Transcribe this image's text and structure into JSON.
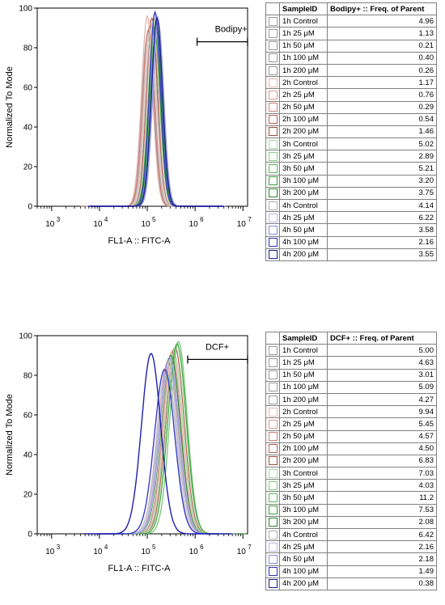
{
  "panels": [
    {
      "id": "top",
      "chart_data": {
        "type": "line",
        "xlabel": "FL1-A :: FITC-A",
        "ylabel": "Normalized To Mode",
        "x_scale": "log",
        "xlim": [
          500,
          12500000
        ],
        "ylim": [
          0,
          100
        ],
        "x_ticks": [
          "10",
          "10",
          "10",
          "10",
          "10"
        ],
        "x_tick_exponents": [
          "3",
          "4",
          "5",
          "6",
          "7"
        ],
        "y_ticks": [
          "0",
          "20",
          "40",
          "60",
          "80",
          "100"
        ],
        "gate": {
          "label": "Bodipy+",
          "from": 1100000,
          "to": 12500000,
          "y": 83
        },
        "series": [
          {
            "color": "#b8b8b8",
            "peak": 140000,
            "height": 95,
            "width": 0.115
          },
          {
            "color": "#c8c8c8",
            "peak": 120000,
            "height": 91,
            "width": 0.12
          },
          {
            "color": "#aaaaaa",
            "peak": 110000,
            "height": 88,
            "width": 0.12
          },
          {
            "color": "#d0d0d0",
            "peak": 150000,
            "height": 93,
            "width": 0.115
          },
          {
            "color": "#bdbdbd",
            "peak": 100000,
            "height": 86,
            "width": 0.12
          },
          {
            "color": "#e9c6c1",
            "peak": 115000,
            "height": 94,
            "width": 0.12
          },
          {
            "color": "#e0aea8",
            "peak": 100000,
            "height": 96,
            "width": 0.12
          },
          {
            "color": "#d8958c",
            "peak": 130000,
            "height": 92,
            "width": 0.115
          },
          {
            "color": "#c97a70",
            "peak": 105000,
            "height": 89,
            "width": 0.12
          },
          {
            "color": "#b56358",
            "peak": 125000,
            "height": 95,
            "width": 0.115
          },
          {
            "color": "#c9e8c9",
            "peak": 135000,
            "height": 93,
            "width": 0.12
          },
          {
            "color": "#9fd89f",
            "peak": 145000,
            "height": 97,
            "width": 0.115
          },
          {
            "color": "#6fc26f",
            "peak": 150000,
            "height": 94,
            "width": 0.115
          },
          {
            "color": "#3ea63e",
            "peak": 140000,
            "height": 90,
            "width": 0.12
          },
          {
            "color": "#2e8b2e",
            "peak": 155000,
            "height": 92,
            "width": 0.115
          },
          {
            "color": "#cccccc",
            "peak": 120000,
            "height": 90,
            "width": 0.12
          },
          {
            "color": "#c8c8f0",
            "peak": 165000,
            "height": 96,
            "width": 0.115
          },
          {
            "color": "#9a9ae6",
            "peak": 170000,
            "height": 93,
            "width": 0.115
          },
          {
            "color": "#3d3dc8",
            "peak": 145000,
            "height": 98,
            "width": 0.115
          },
          {
            "color": "#1f1f9e",
            "peak": 160000,
            "height": 95,
            "width": 0.115
          }
        ]
      },
      "table": {
        "headers": [
          "SampleID",
          "Bodipy+ :: Freq. of Parent"
        ],
        "rows": [
          {
            "sample": "1h Control",
            "value": "4.96",
            "color": "#ffffff",
            "border": "#9a9a9a"
          },
          {
            "sample": "1h 25 μM",
            "value": "1.13",
            "color": "#ffffff",
            "border": "#9a9a9a"
          },
          {
            "sample": "1h 50 μM",
            "value": "0.21",
            "color": "#ffffff",
            "border": "#9a9a9a"
          },
          {
            "sample": "1h 100 μM",
            "value": "0.40",
            "color": "#ffffff",
            "border": "#9a9a9a"
          },
          {
            "sample": "1h 200 μM",
            "value": "0.26",
            "color": "#ffffff",
            "border": "#9a9a9a"
          },
          {
            "sample": "2h Control",
            "value": "1.17",
            "color": "#ffffff",
            "border": "#e6b5ae"
          },
          {
            "sample": "2h 25 μM",
            "value": "0.76",
            "color": "#ffffff",
            "border": "#d89a91"
          },
          {
            "sample": "2h 50 μM",
            "value": "0.29",
            "color": "#ffffff",
            "border": "#cc8075"
          },
          {
            "sample": "2h 100 μM",
            "value": "0.54",
            "color": "#ffffff",
            "border": "#b86558"
          },
          {
            "sample": "2h 200 μM",
            "value": "1.46",
            "color": "#ffffff",
            "border": "#a14d40"
          },
          {
            "sample": "3h Control",
            "value": "5.02",
            "color": "#ffffff",
            "border": "#a8dca8"
          },
          {
            "sample": "3h 25 μM",
            "value": "2.89",
            "color": "#ffffff",
            "border": "#86cc86"
          },
          {
            "sample": "3h 50 μM",
            "value": "5.21",
            "color": "#ffffff",
            "border": "#5cb85c"
          },
          {
            "sample": "3h 100 μM",
            "value": "3.20",
            "color": "#ffffff",
            "border": "#3a9f3a"
          },
          {
            "sample": "3h 200 μM",
            "value": "3.75",
            "color": "#ffffff",
            "border": "#2a842a"
          },
          {
            "sample": "4h Control",
            "value": "4.14",
            "color": "#ffffff",
            "border": "#b0b0b0"
          },
          {
            "sample": "4h 25 μM",
            "value": "6.22",
            "color": "#ffffff",
            "border": "#b8b8ea"
          },
          {
            "sample": "4h 50 μM",
            "value": "3.58",
            "color": "#ffffff",
            "border": "#8a8ade"
          },
          {
            "sample": "4h 100 μM",
            "value": "2.16",
            "color": "#ffffff",
            "border": "#3030c0"
          },
          {
            "sample": "4h 200 μM",
            "value": "3.55",
            "color": "#ffffff",
            "border": "#1a1a96"
          }
        ]
      }
    },
    {
      "id": "bottom",
      "chart_data": {
        "type": "line",
        "xlabel": "FL1-A :: FITC-A",
        "ylabel": "Normalized To Mode",
        "x_scale": "log",
        "xlim": [
          500,
          12500000
        ],
        "ylim": [
          0,
          100
        ],
        "x_ticks": [
          "10",
          "10",
          "10",
          "10",
          "10"
        ],
        "x_tick_exponents": [
          "3",
          "4",
          "5",
          "6",
          "7"
        ],
        "y_ticks": [
          "0",
          "20",
          "40",
          "60",
          "80",
          "100"
        ],
        "gate": {
          "label": "DCF+",
          "from": 700000,
          "to": 12500000,
          "y": 88
        },
        "series": [
          {
            "color": "#b8b8b8",
            "peak": 280000,
            "height": 88,
            "width": 0.2
          },
          {
            "color": "#c8c8c8",
            "peak": 250000,
            "height": 84,
            "width": 0.2
          },
          {
            "color": "#aaaaaa",
            "peak": 320000,
            "height": 90,
            "width": 0.19
          },
          {
            "color": "#d0d0d0",
            "peak": 300000,
            "height": 86,
            "width": 0.2
          },
          {
            "color": "#bdbdbd",
            "peak": 260000,
            "height": 80,
            "width": 0.21
          },
          {
            "color": "#e9c6c1",
            "peak": 350000,
            "height": 93,
            "width": 0.19
          },
          {
            "color": "#e0aea8",
            "peak": 290000,
            "height": 89,
            "width": 0.2
          },
          {
            "color": "#d8958c",
            "peak": 330000,
            "height": 92,
            "width": 0.19
          },
          {
            "color": "#c97a70",
            "peak": 270000,
            "height": 87,
            "width": 0.2
          },
          {
            "color": "#b56358",
            "peak": 380000,
            "height": 94,
            "width": 0.19
          },
          {
            "color": "#c9e8c9",
            "peak": 400000,
            "height": 95,
            "width": 0.19
          },
          {
            "color": "#9fd89f",
            "peak": 360000,
            "height": 91,
            "width": 0.19
          },
          {
            "color": "#6fc26f",
            "peak": 450000,
            "height": 97,
            "width": 0.18
          },
          {
            "color": "#3ea63e",
            "peak": 420000,
            "height": 96,
            "width": 0.19
          },
          {
            "color": "#2e8b2e",
            "peak": 310000,
            "height": 90,
            "width": 0.2
          },
          {
            "color": "#cccccc",
            "peak": 300000,
            "height": 88,
            "width": 0.2
          },
          {
            "color": "#c8c8f0",
            "peak": 270000,
            "height": 85,
            "width": 0.2
          },
          {
            "color": "#9a9ae6",
            "peak": 290000,
            "height": 89,
            "width": 0.2
          },
          {
            "color": "#3d3dc8",
            "peak": 230000,
            "height": 83,
            "width": 0.21
          },
          {
            "color": "#1f1fb0",
            "peak": 120000,
            "height": 91,
            "width": 0.2
          }
        ]
      },
      "table": {
        "headers": [
          "SampleID",
          "DCF+ :: Freq. of Parent"
        ],
        "rows": [
          {
            "sample": "1h Control",
            "value": "5.00",
            "color": "#ffffff",
            "border": "#9a9a9a"
          },
          {
            "sample": "1h 25 μM",
            "value": "4.63",
            "color": "#ffffff",
            "border": "#9a9a9a"
          },
          {
            "sample": "1h 50 μM",
            "value": "3.01",
            "color": "#ffffff",
            "border": "#9a9a9a"
          },
          {
            "sample": "1h 100 μM",
            "value": "5.09",
            "color": "#ffffff",
            "border": "#9a9a9a"
          },
          {
            "sample": "1h 200 μM",
            "value": "4.27",
            "color": "#ffffff",
            "border": "#9a9a9a"
          },
          {
            "sample": "2h Control",
            "value": "9.94",
            "color": "#ffffff",
            "border": "#e6b5ae"
          },
          {
            "sample": "2h 25 μM",
            "value": "5.45",
            "color": "#ffffff",
            "border": "#d89a91"
          },
          {
            "sample": "2h 50 μM",
            "value": "4.57",
            "color": "#ffffff",
            "border": "#cc8075"
          },
          {
            "sample": "2h 100 μM",
            "value": "4.50",
            "color": "#ffffff",
            "border": "#b86558"
          },
          {
            "sample": "2h 200 μM",
            "value": "6.83",
            "color": "#ffffff",
            "border": "#a14d40"
          },
          {
            "sample": "3h Control",
            "value": "7.03",
            "color": "#ffffff",
            "border": "#a8dca8"
          },
          {
            "sample": "3h 25 μM",
            "value": "4.03",
            "color": "#ffffff",
            "border": "#86cc86"
          },
          {
            "sample": "3h 50 μM",
            "value": "11.2",
            "color": "#ffffff",
            "border": "#5cb85c"
          },
          {
            "sample": "3h 100 μM",
            "value": "7.53",
            "color": "#ffffff",
            "border": "#3a9f3a"
          },
          {
            "sample": "3h 200 μM",
            "value": "2.08",
            "color": "#ffffff",
            "border": "#2a842a"
          },
          {
            "sample": "4h Control",
            "value": "6.42",
            "color": "#ffffff",
            "border": "#b0b0b0"
          },
          {
            "sample": "4h 25 μM",
            "value": "2.16",
            "color": "#ffffff",
            "border": "#b8b8ea"
          },
          {
            "sample": "4h 50 μM",
            "value": "2.18",
            "color": "#ffffff",
            "border": "#8a8ade"
          },
          {
            "sample": "4h 100 μM",
            "value": "1.49",
            "color": "#ffffff",
            "border": "#3030c0"
          },
          {
            "sample": "4h 200 μM",
            "value": "0.38",
            "color": "#ffffff",
            "border": "#1a1a96"
          }
        ]
      }
    }
  ]
}
